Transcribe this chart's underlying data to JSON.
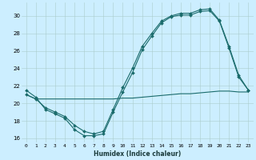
{
  "title": "",
  "xlabel": "Humidex (Indice chaleur)",
  "background_color": "#cceeff",
  "grid_color": "#aacccc",
  "line_color": "#1a6b6b",
  "xlim": [
    -0.5,
    23.5
  ],
  "ylim": [
    15.5,
    31.5
  ],
  "xticks": [
    0,
    1,
    2,
    3,
    4,
    5,
    6,
    7,
    8,
    9,
    10,
    11,
    12,
    13,
    14,
    15,
    16,
    17,
    18,
    19,
    20,
    21,
    22,
    23
  ],
  "yticks": [
    16,
    18,
    20,
    22,
    24,
    26,
    28,
    30
  ],
  "series": [
    {
      "x": [
        0,
        1,
        2,
        3,
        4,
        5,
        6,
        7,
        8,
        9,
        10,
        11,
        12,
        13,
        14,
        15,
        16,
        17,
        18,
        19,
        20,
        21,
        22,
        23
      ],
      "y": [
        21.5,
        20.7,
        19.3,
        18.8,
        18.3,
        17.0,
        16.3,
        16.3,
        16.5,
        19.0,
        21.3,
        23.5,
        26.1,
        27.7,
        29.2,
        29.9,
        30.1,
        30.1,
        30.5,
        30.6,
        29.4,
        26.3,
        23.0,
        21.5
      ],
      "marker": true
    },
    {
      "x": [
        0,
        1,
        2,
        3,
        4,
        5,
        6,
        7,
        8,
        9,
        10,
        11,
        12,
        13,
        14,
        15,
        16,
        17,
        18,
        19,
        20,
        21,
        22,
        23
      ],
      "y": [
        21.0,
        20.5,
        19.5,
        19.0,
        18.5,
        17.5,
        16.8,
        16.5,
        16.8,
        19.3,
        21.8,
        24.0,
        26.5,
        28.0,
        29.4,
        30.0,
        30.3,
        30.3,
        30.7,
        30.8,
        29.5,
        26.5,
        23.2,
        21.5
      ],
      "marker": true
    },
    {
      "x": [
        0,
        1,
        2,
        3,
        4,
        5,
        6,
        7,
        8,
        9,
        10,
        11,
        12,
        13,
        14,
        15,
        16,
        17,
        18,
        19,
        20,
        21,
        22,
        23
      ],
      "y": [
        21.0,
        20.5,
        20.5,
        20.5,
        20.5,
        20.5,
        20.5,
        20.5,
        20.5,
        20.5,
        20.6,
        20.6,
        20.7,
        20.8,
        20.9,
        21.0,
        21.1,
        21.1,
        21.2,
        21.3,
        21.4,
        21.4,
        21.3,
        21.3
      ],
      "marker": false
    }
  ],
  "xlabel_fontsize": 5.5,
  "xlabel_bold": true,
  "tick_fontsize": 4.5,
  "ytick_fontsize": 5.0,
  "linewidth": 0.8,
  "markersize": 2.0
}
